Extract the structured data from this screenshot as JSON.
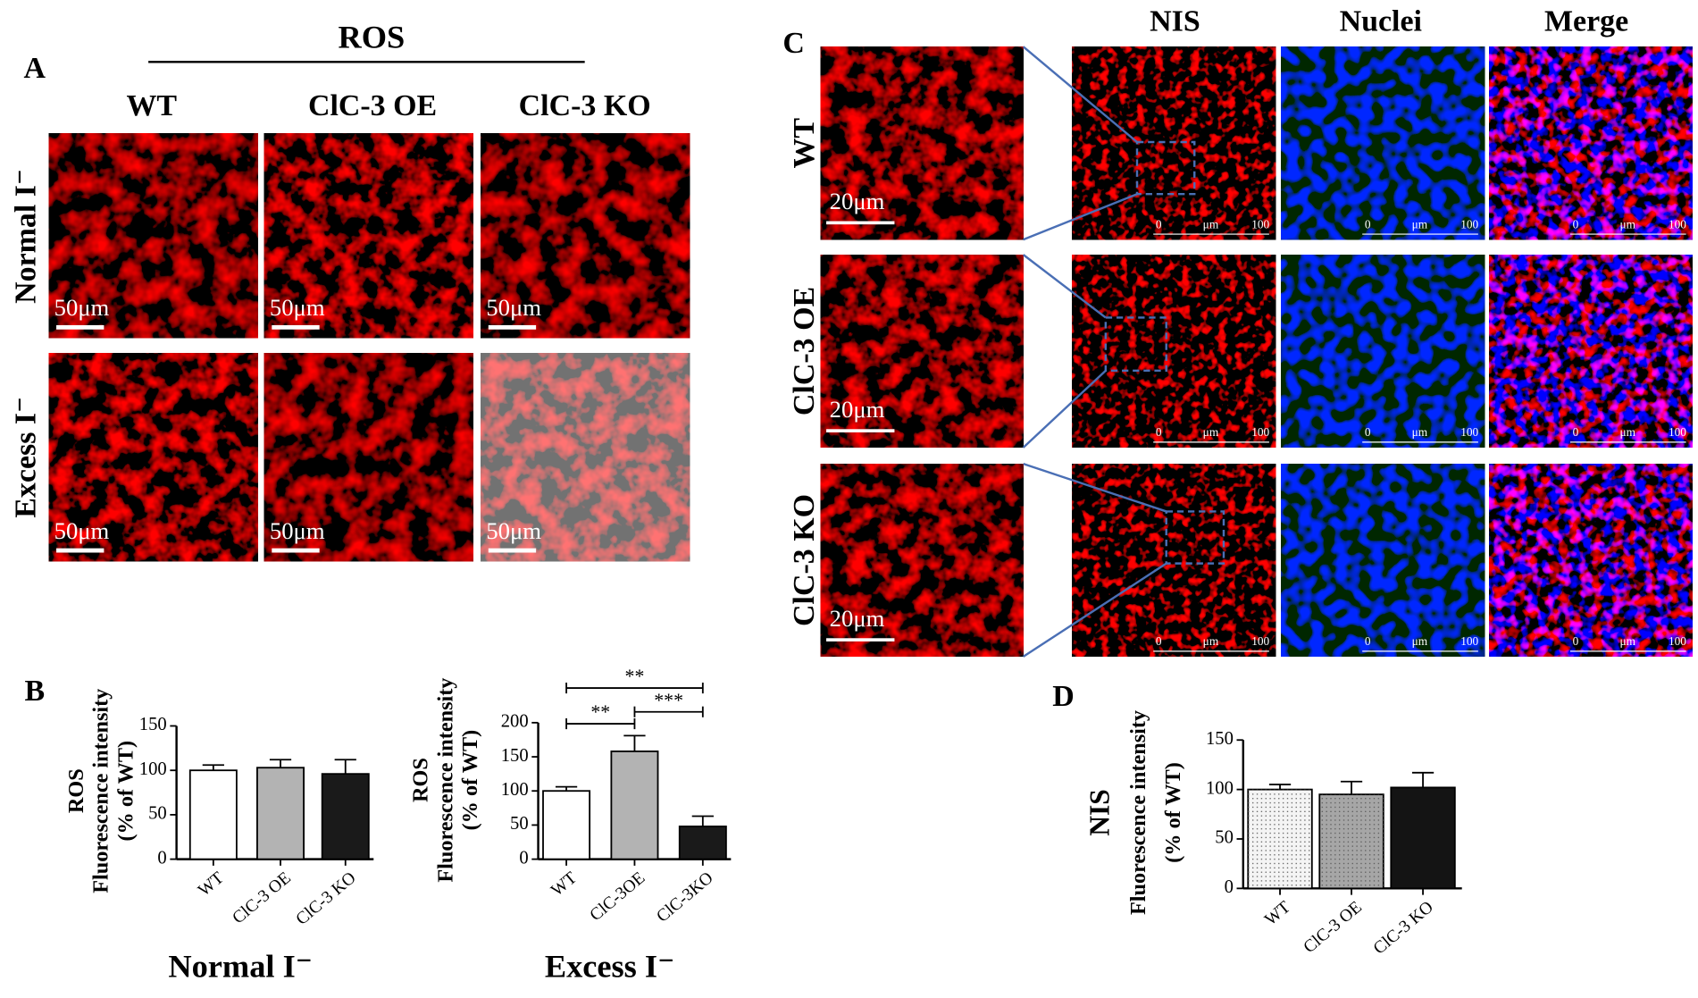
{
  "panel_labels": [
    "A",
    "B",
    "C",
    "D"
  ],
  "panel_a": {
    "title": "ROS",
    "columns": [
      "WT",
      "ClC-3 OE",
      "ClC-3 KO"
    ],
    "rows": [
      "Normal I⁻",
      "Excess I⁻"
    ],
    "scale_label": "50μm"
  },
  "panel_c": {
    "columns": [
      "NIS",
      "Nuclei",
      "Merge"
    ],
    "rows": [
      "WT",
      "ClC-3 OE",
      "ClC-3 KO"
    ],
    "scale_label": "20μm",
    "scale_bar": {
      "start": "0",
      "unit": "μm",
      "end": "100"
    }
  },
  "chart_data": [
    {
      "type": "bar",
      "title": "Normal I⁻",
      "ylabel": [
        "ROS",
        "Fluorescence intensity",
        "(% of WT)"
      ],
      "categories": [
        "WT",
        "ClC-3 OE",
        "ClC-3 KO"
      ],
      "values": [
        100,
        103,
        96
      ],
      "errors": [
        6,
        9,
        16
      ],
      "colors": [
        "#ffffff",
        "#b3b3b3",
        "#1a1a1a"
      ],
      "ylim": [
        0,
        150
      ],
      "yticks": [
        0,
        50,
        100,
        150
      ]
    },
    {
      "type": "bar",
      "title": "Excess I⁻",
      "ylabel": [
        "ROS",
        "Fluorescence intensity",
        "(% of WT)"
      ],
      "categories": [
        "WT",
        "ClC-3OE",
        "ClC-3KO"
      ],
      "values": [
        100,
        158,
        48
      ],
      "errors": [
        6,
        23,
        15
      ],
      "colors": [
        "#ffffff",
        "#b3b3b3",
        "#1a1a1a"
      ],
      "ylim": [
        0,
        200
      ],
      "yticks": [
        0,
        50,
        100,
        150,
        200
      ],
      "significance": [
        "**",
        "**",
        "***"
      ]
    },
    {
      "type": "bar",
      "ylabel": [
        "NIS",
        "Fluorescence intensity",
        "(% of WT)"
      ],
      "categories": [
        "WT",
        "ClC-3 OE",
        "ClC-3 KO"
      ],
      "values": [
        100,
        95,
        102
      ],
      "errors": [
        5,
        13,
        15
      ],
      "colors": [
        "#f4f4f4",
        "#a6a6a6",
        "#141414"
      ],
      "ylim": [
        0,
        150
      ],
      "yticks": [
        0,
        50,
        100,
        150
      ],
      "pattern": "dots"
    }
  ]
}
